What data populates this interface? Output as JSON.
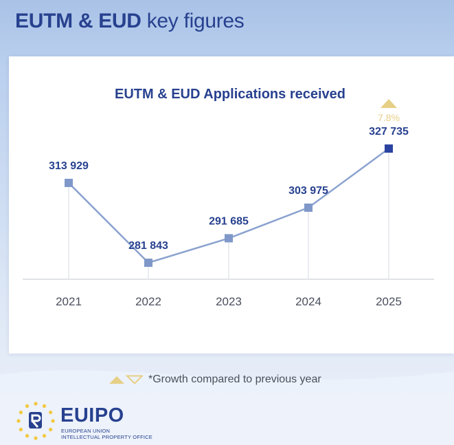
{
  "header": {
    "title_bold": "EUTM & EUD",
    "title_rest": "key figures"
  },
  "chart_data": {
    "type": "line",
    "title": "EUTM & EUD Applications received",
    "categories": [
      "2021",
      "2022",
      "2023",
      "2024",
      "2025"
    ],
    "values": [
      313929,
      281843,
      291685,
      303975,
      327735
    ],
    "value_labels": [
      "313 929",
      "281 843",
      "291 685",
      "303 975",
      "327 735"
    ],
    "growth": {
      "label": "7.8%",
      "direction": "up",
      "category": "2025"
    },
    "colors": {
      "line": "#8ba2cf",
      "marker": "#7f98c9",
      "marker_latest": "#2b43a0",
      "value_label": "#27418f",
      "growth": "#e6cf86"
    },
    "grid": false
  },
  "footnote": {
    "text": "*Growth compared to previous year"
  },
  "logo": {
    "name": "EUIPO",
    "line1": "EUROPEAN UNION",
    "line2": "INTELLECTUAL PROPERTY OFFICE",
    "icon": "euipo-star-circle-icon"
  }
}
